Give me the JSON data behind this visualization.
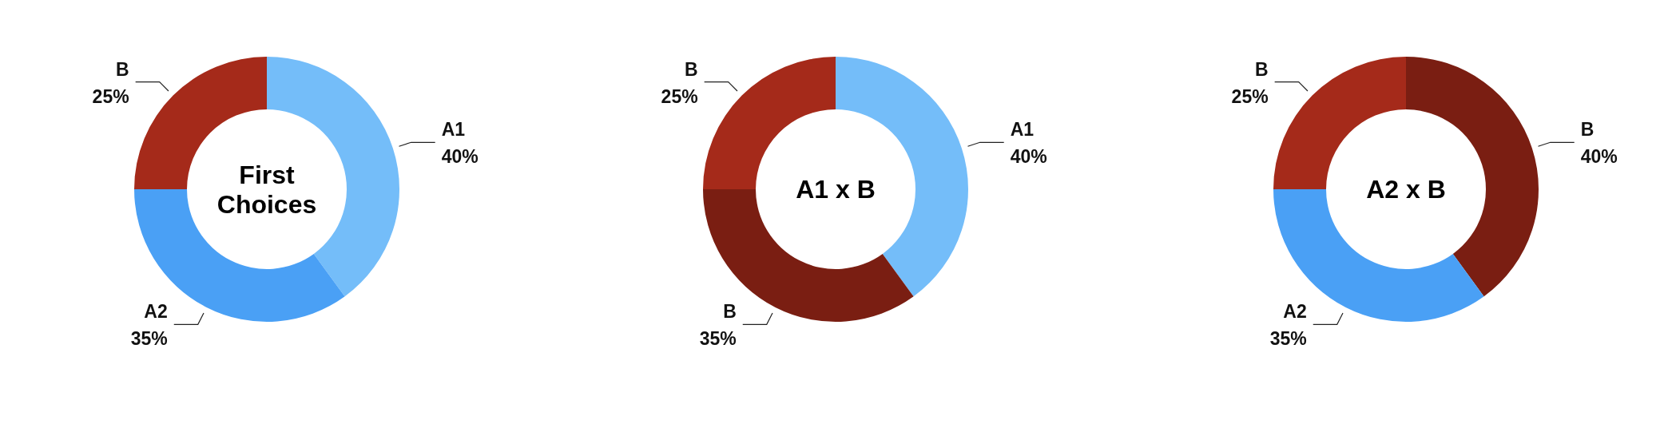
{
  "chart_data": [
    {
      "type": "donut",
      "title": "First Choices",
      "categories": [
        "A1",
        "A2",
        "B"
      ],
      "values": [
        40,
        35,
        25
      ],
      "colors": [
        "#74bdf9",
        "#4aa0f5",
        "#a52a1a"
      ],
      "value_labels": [
        "40%",
        "35%",
        "25%"
      ]
    },
    {
      "type": "donut",
      "title": "A1 x B",
      "categories": [
        "A1",
        "B",
        "B"
      ],
      "values": [
        40,
        35,
        25
      ],
      "colors": [
        "#74bdf9",
        "#7a1e12",
        "#a52a1a"
      ],
      "value_labels": [
        "40%",
        "35%",
        "25%"
      ]
    },
    {
      "type": "donut",
      "title": "A2 x B",
      "categories": [
        "B",
        "A2",
        "B"
      ],
      "values": [
        40,
        35,
        25
      ],
      "colors": [
        "#7a1e12",
        "#4aa0f5",
        "#a52a1a"
      ],
      "value_labels": [
        "40%",
        "35%",
        "25%"
      ]
    }
  ]
}
